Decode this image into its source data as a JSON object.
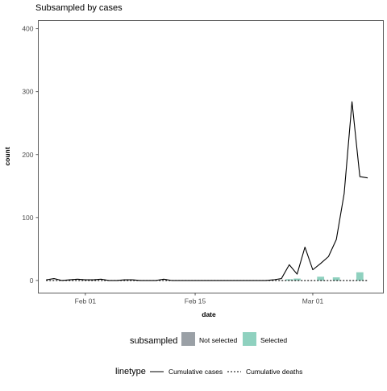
{
  "chart_data": {
    "type": "line",
    "title": "Subsampled by cases",
    "xlabel": "date",
    "ylabel": "count",
    "x_tick_labels": [
      "Feb 01",
      "Feb 15",
      "Mar 01"
    ],
    "y_tick_labels": [
      "0",
      "100",
      "200",
      "300",
      "400"
    ],
    "ylim": [
      -20,
      413
    ],
    "xlim": [
      "2020-01-26",
      "2020-03-10"
    ],
    "grid": false,
    "legend_position": "bottom",
    "x": [
      "2020-01-27",
      "2020-01-28",
      "2020-01-29",
      "2020-01-30",
      "2020-01-31",
      "2020-02-01",
      "2020-02-02",
      "2020-02-03",
      "2020-02-04",
      "2020-02-05",
      "2020-02-06",
      "2020-02-07",
      "2020-02-08",
      "2020-02-09",
      "2020-02-10",
      "2020-02-11",
      "2020-02-12",
      "2020-02-13",
      "2020-02-14",
      "2020-02-15",
      "2020-02-16",
      "2020-02-17",
      "2020-02-18",
      "2020-02-19",
      "2020-02-20",
      "2020-02-21",
      "2020-02-22",
      "2020-02-23",
      "2020-02-24",
      "2020-02-25",
      "2020-02-26",
      "2020-02-27",
      "2020-02-28",
      "2020-02-29",
      "2020-03-01",
      "2020-03-02",
      "2020-03-03",
      "2020-03-04",
      "2020-03-05",
      "2020-03-06",
      "2020-03-07",
      "2020-03-08"
    ],
    "series": [
      {
        "name": "Cumulative cases",
        "linetype": "solid",
        "values": [
          1,
          3,
          0,
          1,
          2,
          1,
          1,
          2,
          0,
          0,
          1,
          1,
          0,
          0,
          0,
          2,
          0,
          0,
          0,
          0,
          0,
          0,
          0,
          0,
          0,
          0,
          0,
          0,
          0,
          1,
          3,
          25,
          10,
          53,
          17,
          27,
          38,
          65,
          138,
          284,
          165,
          163
        ]
      },
      {
        "name": "Cumulative deaths",
        "linetype": "dashed",
        "values": [
          0,
          0,
          0,
          0,
          0,
          0,
          0,
          0,
          0,
          0,
          0,
          0,
          0,
          0,
          0,
          0,
          0,
          0,
          0,
          0,
          0,
          0,
          0,
          0,
          0,
          0,
          0,
          0,
          0,
          0,
          0,
          0,
          0,
          0,
          0,
          0,
          0,
          0,
          0,
          0,
          0,
          0
        ]
      }
    ],
    "bars": {
      "x": [
        "2020-02-27",
        "2020-02-28",
        "2020-03-02",
        "2020-03-04",
        "2020-03-07"
      ],
      "values": [
        2,
        3,
        6,
        5,
        13
      ],
      "group": "Selected"
    },
    "legends": [
      {
        "title": "subsampled",
        "items": [
          {
            "label": "Not selected",
            "color": "#9aa0a6"
          },
          {
            "label": "Selected",
            "color": "#8fd1bf"
          }
        ]
      },
      {
        "title": "linetype",
        "items": [
          {
            "label": "Cumulative cases",
            "style": "solid"
          },
          {
            "label": "Cumulative deaths",
            "style": "dashed"
          }
        ]
      }
    ],
    "colors": {
      "line": "#000000",
      "panel_border": "#333333",
      "tick_text": "#4d4d4d"
    }
  }
}
